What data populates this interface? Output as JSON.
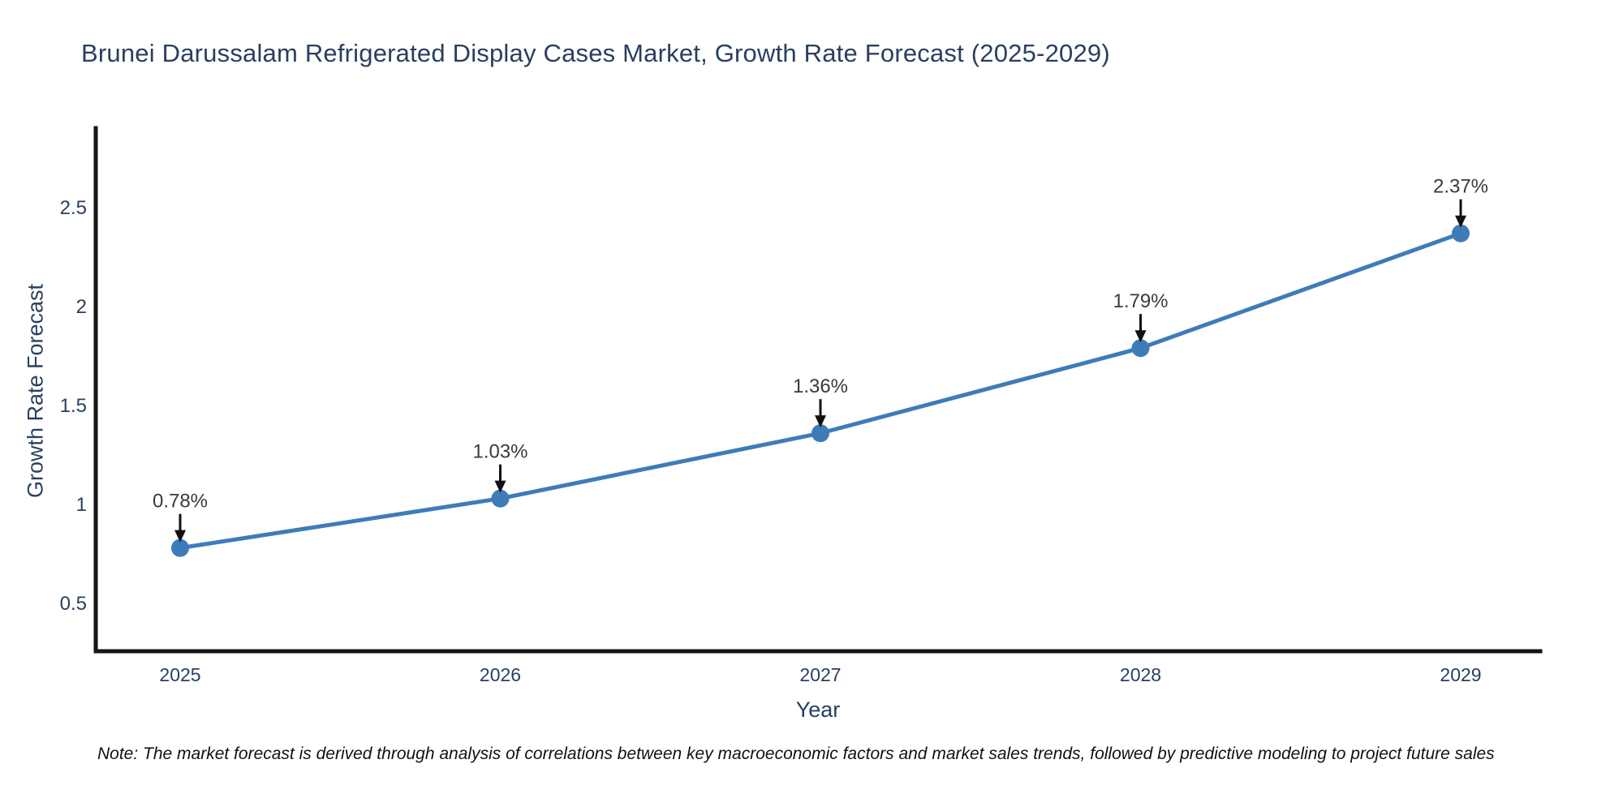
{
  "title": "Brunei Darussalam Refrigerated Display Cases Market, Growth Rate Forecast (2025-2029)",
  "note": "Note: The market forecast is derived through analysis of correlations between key macroeconomic factors and market sales trends, followed by predictive modeling to project future sales",
  "chart_data": {
    "type": "line",
    "title": "Brunei Darussalam Refrigerated Display Cases Market, Growth Rate Forecast (2025-2029)",
    "xlabel": "Year",
    "ylabel": "Growth Rate Forecast",
    "x": [
      2025,
      2026,
      2027,
      2028,
      2029
    ],
    "xtick_labels": [
      "2025",
      "2026",
      "2027",
      "2028",
      "2029"
    ],
    "series": [
      {
        "name": "Growth Rate Forecast",
        "values": [
          0.78,
          1.03,
          1.36,
          1.79,
          2.37
        ]
      }
    ],
    "point_labels": [
      "0.78%",
      "1.03%",
      "1.36%",
      "1.79%",
      "2.37%"
    ],
    "yticks": [
      0.5,
      1,
      1.5,
      2,
      2.5
    ],
    "ytick_labels": [
      "0.5",
      "1",
      "1.5",
      "2",
      "2.5"
    ],
    "ylim": [
      0.25,
      2.9
    ],
    "grid": false,
    "legend": "none",
    "line_color": "#3d7cb8",
    "marker_color": "#3d7cb8",
    "axis_color": "#151515",
    "title_color": "#2a3f5f",
    "annotation_color": "#3a3a3a"
  }
}
